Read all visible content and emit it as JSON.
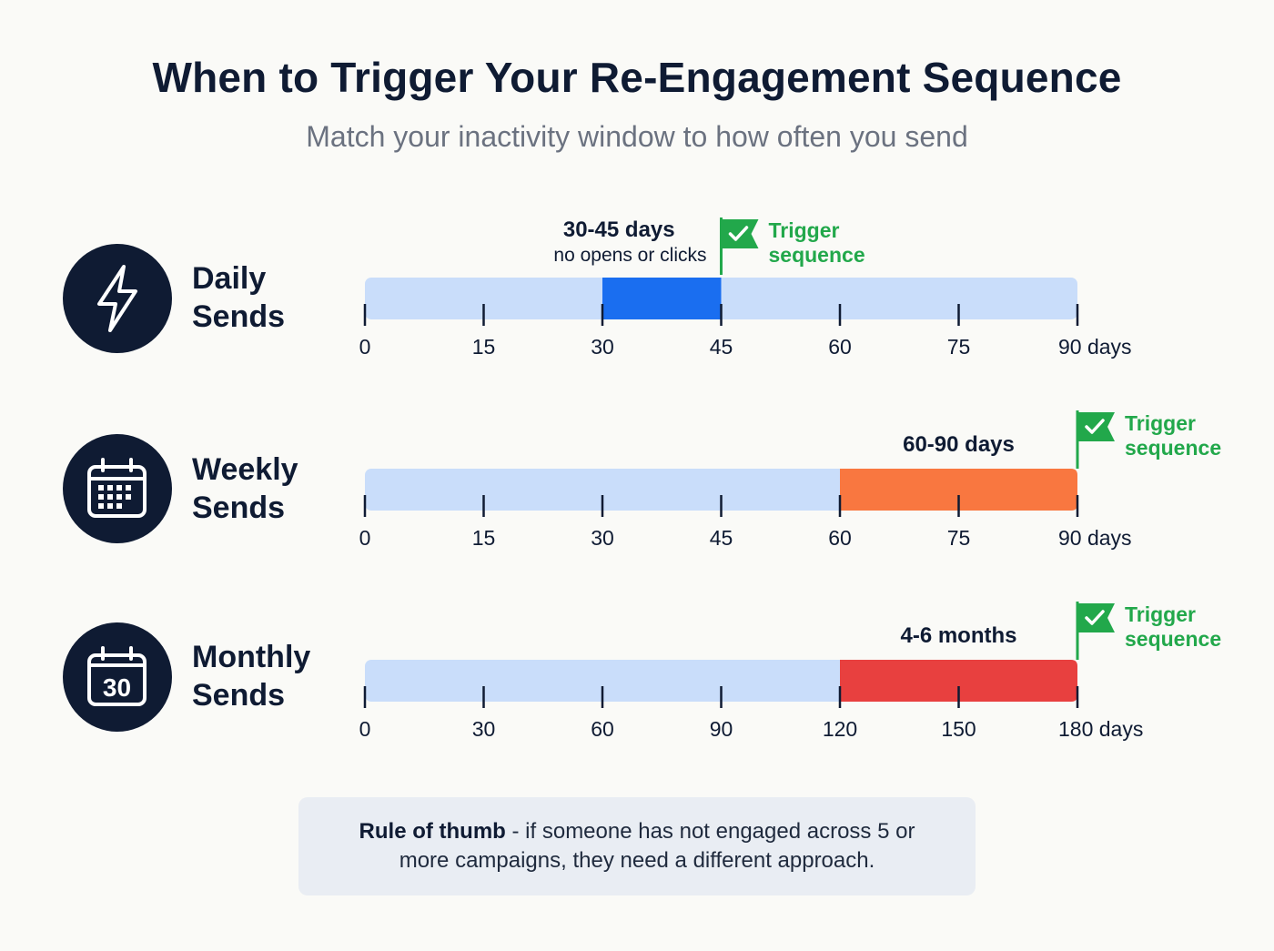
{
  "title": "When to Trigger Your Re-Engagement Sequence",
  "subtitle": "Match your inactivity window to how often you send",
  "rows": [
    {
      "label_line1": "Daily",
      "label_line2": "Sends",
      "icon": "lightning-icon"
    },
    {
      "label_line1": "Weekly",
      "label_line2": "Sends",
      "icon": "calendar-icon"
    },
    {
      "label_line1": "Monthly",
      "label_line2": "Sends",
      "icon": "calendar-30-icon",
      "icon_text": "30"
    }
  ],
  "chart_data": [
    {
      "type": "range-timeline",
      "name": "Daily Sends",
      "xlim": [
        0,
        90
      ],
      "ticks": [
        0,
        15,
        30,
        45,
        60,
        75,
        90
      ],
      "tick_labels": [
        "0",
        "15",
        "30",
        "45",
        "60",
        "75",
        "90 days"
      ],
      "range": [
        30,
        45
      ],
      "range_color": "#1a6ef0",
      "range_label": "30-45 days",
      "range_sublabel": "no opens or clicks",
      "flag_at": 45,
      "flag_text": [
        "Trigger",
        "sequence"
      ]
    },
    {
      "type": "range-timeline",
      "name": "Weekly Sends",
      "xlim": [
        0,
        90
      ],
      "ticks": [
        0,
        15,
        30,
        45,
        60,
        75,
        90
      ],
      "tick_labels": [
        "0",
        "15",
        "30",
        "45",
        "60",
        "75",
        "90 days"
      ],
      "range": [
        60,
        90
      ],
      "range_color": "#f97740",
      "range_label": "60-90 days",
      "range_sublabel": "",
      "flag_at": 90,
      "flag_text": [
        "Trigger",
        "sequence"
      ]
    },
    {
      "type": "range-timeline",
      "name": "Monthly Sends",
      "xlim": [
        0,
        180
      ],
      "ticks": [
        0,
        30,
        60,
        90,
        120,
        150,
        180
      ],
      "tick_labels": [
        "0",
        "30",
        "60",
        "90",
        "120",
        "150",
        "180 days"
      ],
      "range": [
        120,
        180
      ],
      "range_color": "#e8403f",
      "range_label": "4-6 months",
      "range_sublabel": "",
      "flag_at": 180,
      "flag_text": [
        "Trigger",
        "sequence"
      ]
    }
  ],
  "colors": {
    "track": "#c9ddfa",
    "flag": "#22a84b",
    "ink": "#0f1b33"
  },
  "note": {
    "bold": "Rule of thumb",
    "line1_rest": " - if someone has not engaged across 5 or",
    "line2": "more campaigns, they need a different approach."
  }
}
